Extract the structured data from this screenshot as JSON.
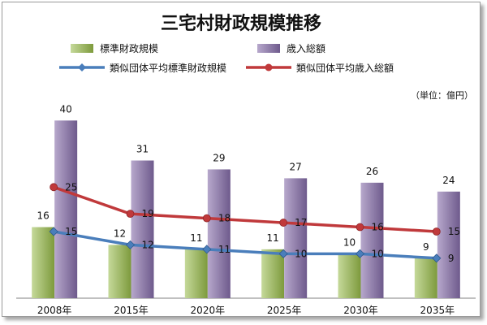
{
  "chart_data": {
    "type": "bar",
    "title": "三宅村財政規模推移",
    "unit_note": "（単位：億円）",
    "categories": [
      "2008年",
      "2015年",
      "2020年",
      "2025年",
      "2030年",
      "2035年"
    ],
    "bar_series": [
      {
        "name": "標準財政規模",
        "values": [
          16,
          12,
          11,
          11,
          10,
          9
        ],
        "color_top": "#c5d99a",
        "color_bottom": "#7d9a3c"
      },
      {
        "name": "歳入総額",
        "values": [
          40,
          31,
          29,
          27,
          26,
          24
        ],
        "color_top": "#b7a8cc",
        "color_bottom": "#6e5a8c"
      }
    ],
    "line_series": [
      {
        "name": "類似団体平均標準財政規模",
        "values": [
          15,
          12,
          11,
          10,
          10,
          9
        ],
        "color": "#4a7ebb"
      },
      {
        "name": "類似団体平均歳入総額",
        "values": [
          25,
          19,
          18,
          17,
          16,
          15
        ],
        "color": "#c0393b"
      }
    ],
    "ylim": [
      0,
      45
    ],
    "grid": false,
    "legend_position": "top"
  }
}
